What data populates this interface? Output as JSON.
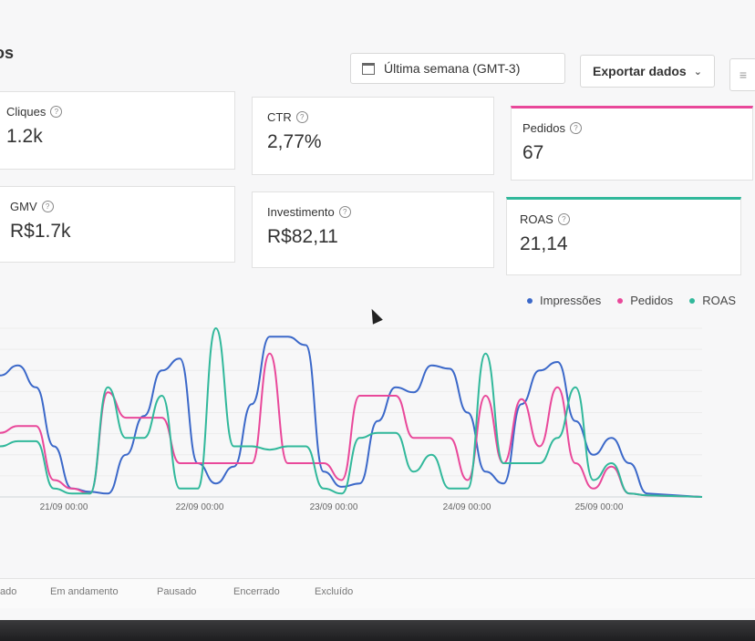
{
  "header": {
    "title_fragment": "os",
    "date_range": "Última semana (GMT-3)",
    "export_label": "Exportar dados",
    "chevron": "chevron-down-icon",
    "menu_icon": "menu-icon"
  },
  "metrics": [
    {
      "label": "Cliques",
      "value": "1.2k"
    },
    {
      "label": "CTR",
      "value": "2,77%"
    },
    {
      "label": "Pedidos",
      "value": "67"
    },
    {
      "label": "GMV",
      "value": "R$1.7k"
    },
    {
      "label": "Investimento",
      "value": "R$82,11"
    },
    {
      "label": "ROAS",
      "value": "21,14"
    }
  ],
  "colors": {
    "impressoes": "#3b68c9",
    "pedidos": "#e9489a",
    "roas": "#31b89b"
  },
  "tabs": [
    "ado",
    "Em andamento",
    "Pausado",
    "Encerrado",
    "Excluído"
  ],
  "chart_data": {
    "type": "line",
    "x_ticks": [
      "21/09 00:00",
      "22/09 00:00",
      "23/09 00:00",
      "24/09 00:00",
      "25/09 00:00"
    ],
    "legend": [
      "Impressões",
      "Pedidos",
      "ROAS"
    ],
    "legend_position": "top-right",
    "grid": true,
    "series": [
      {
        "name": "Impressões",
        "values": [
          0.72,
          0.78,
          0.65,
          0.3,
          0.05,
          0.03,
          0.02,
          0.25,
          0.48,
          0.75,
          0.82,
          0.2,
          0.08,
          0.18,
          0.55,
          0.95,
          0.95,
          0.9,
          0.15,
          0.06,
          0.08,
          0.45,
          0.65,
          0.62,
          0.78,
          0.76,
          0.5,
          0.15,
          0.08,
          0.55,
          0.75,
          0.8,
          0.45,
          0.25,
          0.35,
          0.2,
          0.02
        ]
      },
      {
        "name": "Pedidos",
        "values": [
          0.38,
          0.42,
          0.42,
          0.1,
          0.05,
          0.02,
          0.62,
          0.47,
          0.47,
          0.47,
          0.2,
          0.2,
          0.2,
          0.2,
          0.2,
          0.85,
          0.2,
          0.2,
          0.2,
          0.1,
          0.6,
          0.6,
          0.6,
          0.35,
          0.35,
          0.35,
          0.1,
          0.6,
          0.2,
          0.58,
          0.3,
          0.65,
          0.2,
          0.05,
          0.18,
          0.02,
          0.01
        ]
      },
      {
        "name": "ROAS",
        "values": [
          0.3,
          0.33,
          0.33,
          0.05,
          0.02,
          0.02,
          0.65,
          0.35,
          0.35,
          0.6,
          0.05,
          0.05,
          1.0,
          0.3,
          0.3,
          0.28,
          0.3,
          0.3,
          0.05,
          0.02,
          0.35,
          0.38,
          0.38,
          0.15,
          0.25,
          0.05,
          0.05,
          0.85,
          0.2,
          0.2,
          0.2,
          0.35,
          0.65,
          0.1,
          0.2,
          0.02,
          0.01
        ]
      }
    ]
  }
}
